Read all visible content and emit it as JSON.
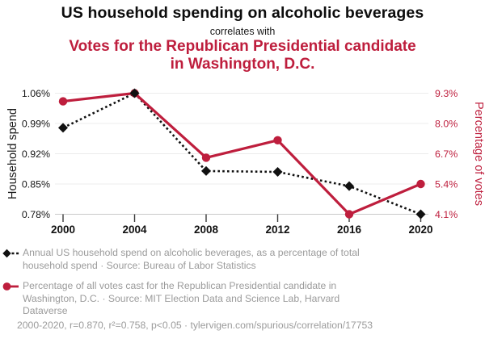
{
  "header": {
    "title": "US household spending on alcoholic beverages",
    "connector": "correlates with",
    "subtitle": "Votes for the Republican Presidential candidate in Washington, D.C."
  },
  "colors": {
    "accent_red": "#be1e3d",
    "series_black": "#111111",
    "legend_text_gray": "#9b9b9b",
    "grid_line": "#ececec",
    "bottom_axis_line": "#c9c9c9",
    "tick_mark": "#3a3a3a"
  },
  "chart_data": {
    "type": "line",
    "x": [
      2000,
      2004,
      2008,
      2012,
      2016,
      2020
    ],
    "x_tick_labels": [
      "2000",
      "2004",
      "2008",
      "2012",
      "2016",
      "2020"
    ],
    "series": [
      {
        "name": "Household spend",
        "axis": "left",
        "marker": "diamond",
        "line_style": "dotted",
        "color": "#111111",
        "values": [
          0.98,
          1.06,
          0.88,
          0.878,
          0.845,
          0.78
        ]
      },
      {
        "name": "Percentage of votes",
        "axis": "right",
        "marker": "circle",
        "line_style": "solid",
        "color": "#be1e3d",
        "values": [
          8.95,
          9.3,
          6.53,
          7.28,
          4.1,
          5.4
        ]
      }
    ],
    "left_axis": {
      "label": "Household spend",
      "tick_labels": [
        "1.06%",
        "0.99%",
        "0.92%",
        "0.85%",
        "0.78%"
      ],
      "min": 0.78,
      "max": 1.06
    },
    "right_axis": {
      "label": "Percentage of votes",
      "tick_labels": [
        "9.3%",
        "8.0%",
        "6.7%",
        "5.4%",
        "4.1%"
      ],
      "min": 4.1,
      "max": 9.3
    },
    "grid": true,
    "legend_position": "below"
  },
  "legend": {
    "items": [
      {
        "id": "household-spend",
        "text": "Annual US household spend on alcoholic beverages, as a percentage of total household spend · Source: Bureau of Labor Statistics"
      },
      {
        "id": "republican-votes",
        "text": "Percentage of all votes cast for the Republican Presidential candidate in Washington, D.C. · Source: MIT Election Data and Science Lab, Harvard Dataverse"
      }
    ]
  },
  "footer": {
    "text": "2000-2020, r=0.870, r²=0.758, p<0.05 · tylervigen.com/spurious/correlation/17753"
  }
}
